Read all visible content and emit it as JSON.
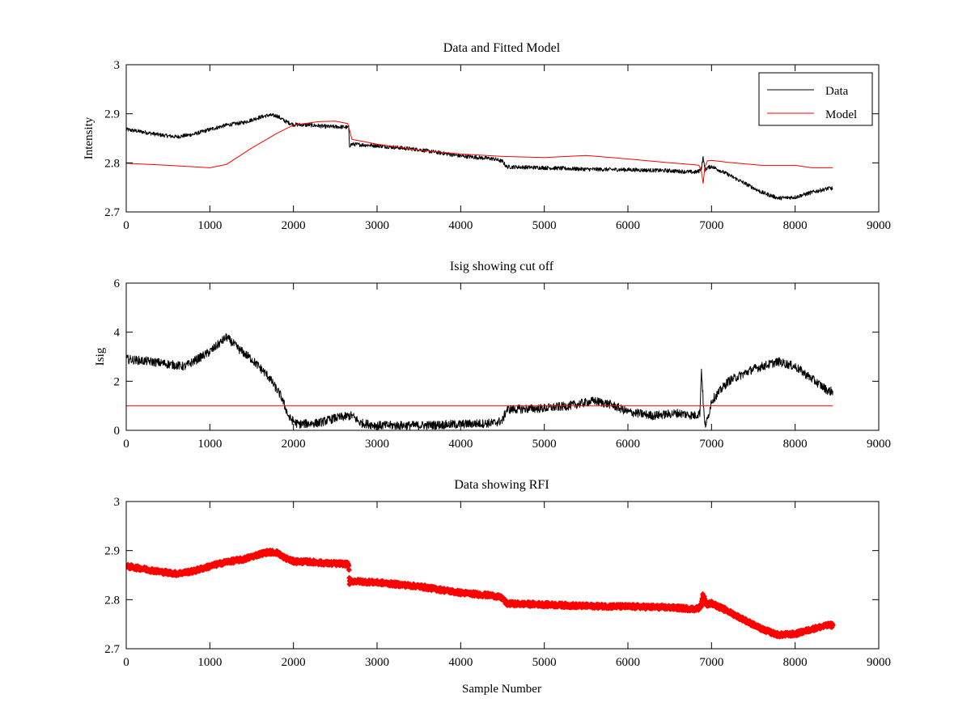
{
  "chart_data": [
    {
      "type": "line",
      "title": "Data and Fitted Model",
      "xlabel": "",
      "ylabel": "Intensity",
      "xlim": [
        0,
        9000
      ],
      "ylim": [
        2.7,
        3.0
      ],
      "xticks": [
        0,
        1000,
        2000,
        3000,
        4000,
        5000,
        6000,
        7000,
        8000,
        9000
      ],
      "yticks": [
        2.7,
        2.8,
        2.9,
        3.0
      ],
      "xtick_labels": [
        "0",
        "1000",
        "2000",
        "3000",
        "4000",
        "5000",
        "6000",
        "7000",
        "8000",
        "9000"
      ],
      "ytick_labels": [
        "2.7",
        "2.8",
        "2.9",
        "3"
      ],
      "legend": "top-right",
      "grid": false,
      "series": [
        {
          "name": "Data",
          "color": "#000000",
          "noise": 0.004,
          "x": [
            0,
            200,
            400,
            600,
            800,
            1000,
            1200,
            1400,
            1600,
            1700,
            1800,
            1900,
            2000,
            2200,
            2400,
            2600,
            2660,
            2670,
            2700,
            3000,
            3500,
            4000,
            4400,
            4500,
            4550,
            5000,
            5500,
            6000,
            6500,
            6800,
            6850,
            6880,
            6900,
            6920,
            6950,
            7000,
            7200,
            7400,
            7600,
            7800,
            8000,
            8200,
            8400,
            8450
          ],
          "y": [
            2.868,
            2.863,
            2.857,
            2.853,
            2.858,
            2.868,
            2.877,
            2.882,
            2.893,
            2.897,
            2.896,
            2.885,
            2.878,
            2.877,
            2.874,
            2.873,
            2.872,
            2.835,
            2.838,
            2.835,
            2.827,
            2.814,
            2.808,
            2.803,
            2.792,
            2.79,
            2.787,
            2.786,
            2.784,
            2.781,
            2.783,
            2.79,
            2.812,
            2.785,
            2.79,
            2.793,
            2.776,
            2.758,
            2.74,
            2.728,
            2.73,
            2.74,
            2.748,
            2.748
          ]
        },
        {
          "name": "Model",
          "color": "#ff0000",
          "noise": 0,
          "x": [
            0,
            500,
            1000,
            1200,
            1500,
            1800,
            2000,
            2300,
            2500,
            2650,
            2700,
            3000,
            3500,
            4000,
            4500,
            5000,
            5500,
            6000,
            6500,
            6800,
            6850,
            6880,
            6900,
            6920,
            6950,
            7000,
            7200,
            7600,
            8000,
            8200,
            8450
          ],
          "y": [
            2.799,
            2.795,
            2.79,
            2.797,
            2.83,
            2.86,
            2.877,
            2.884,
            2.885,
            2.88,
            2.848,
            2.838,
            2.826,
            2.818,
            2.813,
            2.811,
            2.815,
            2.808,
            2.8,
            2.796,
            2.795,
            2.782,
            2.758,
            2.792,
            2.804,
            2.805,
            2.801,
            2.795,
            2.795,
            2.79,
            2.79
          ]
        }
      ]
    },
    {
      "type": "line",
      "title": "Isig showing cut off",
      "xlabel": "",
      "ylabel": "Isig",
      "xlim": [
        0,
        9000
      ],
      "ylim": [
        0,
        6
      ],
      "xticks": [
        0,
        1000,
        2000,
        3000,
        4000,
        5000,
        6000,
        7000,
        8000,
        9000
      ],
      "yticks": [
        0,
        2,
        4,
        6
      ],
      "xtick_labels": [
        "0",
        "1000",
        "2000",
        "3000",
        "4000",
        "5000",
        "6000",
        "7000",
        "8000",
        "9000"
      ],
      "ytick_labels": [
        "0",
        "2",
        "4",
        "6"
      ],
      "grid": false,
      "series": [
        {
          "color": "#000000",
          "noise": 0.18,
          "x": [
            0,
            300,
            700,
            1000,
            1200,
            1350,
            1500,
            1700,
            1850,
            1950,
            2050,
            2300,
            2500,
            2700,
            2800,
            3000,
            3500,
            4000,
            4400,
            4500,
            4550,
            5000,
            5300,
            5600,
            5800,
            6000,
            6300,
            6600,
            6800,
            6860,
            6880,
            6900,
            6920,
            6950,
            7000,
            7200,
            7500,
            7800,
            8000,
            8200,
            8400,
            8450
          ],
          "y": [
            2.9,
            2.8,
            2.6,
            3.2,
            3.8,
            3.3,
            2.9,
            2.2,
            1.4,
            0.5,
            0.25,
            0.3,
            0.5,
            0.6,
            0.3,
            0.2,
            0.2,
            0.25,
            0.3,
            0.4,
            0.85,
            0.9,
            1.0,
            1.2,
            1.05,
            0.75,
            0.6,
            0.7,
            0.6,
            0.7,
            2.5,
            1.2,
            0.2,
            0.4,
            1.2,
            2.0,
            2.5,
            2.8,
            2.6,
            2.1,
            1.6,
            1.6
          ]
        },
        {
          "color": "#ff0000",
          "noise": 0,
          "x": [
            0,
            8450
          ],
          "y": [
            1,
            1
          ]
        }
      ]
    },
    {
      "type": "scatter",
      "title": "Data showing RFI",
      "xlabel": "Sample Number",
      "ylabel": "",
      "xlim": [
        0,
        9000
      ],
      "ylim": [
        2.7,
        3.0
      ],
      "xticks": [
        0,
        1000,
        2000,
        3000,
        4000,
        5000,
        6000,
        7000,
        8000,
        9000
      ],
      "yticks": [
        2.7,
        2.8,
        2.9,
        3.0
      ],
      "xtick_labels": [
        "0",
        "1000",
        "2000",
        "3000",
        "4000",
        "5000",
        "6000",
        "7000",
        "8000",
        "9000"
      ],
      "ytick_labels": [
        "2.7",
        "2.8",
        "2.9",
        "3"
      ],
      "grid": false,
      "series": [
        {
          "color": "#ff0000",
          "noise": 0.004,
          "x": [
            0,
            200,
            400,
            600,
            800,
            1000,
            1200,
            1400,
            1600,
            1700,
            1800,
            1900,
            2000,
            2200,
            2400,
            2600,
            2660,
            2670,
            2700,
            3000,
            3500,
            4000,
            4400,
            4500,
            4550,
            5000,
            5500,
            6000,
            6500,
            6800,
            6850,
            6880,
            6900,
            6920,
            6950,
            7000,
            7200,
            7400,
            7600,
            7800,
            8000,
            8200,
            8400,
            8450
          ],
          "y": [
            2.868,
            2.863,
            2.857,
            2.853,
            2.858,
            2.868,
            2.877,
            2.882,
            2.893,
            2.897,
            2.896,
            2.885,
            2.878,
            2.877,
            2.874,
            2.873,
            2.872,
            2.835,
            2.838,
            2.835,
            2.827,
            2.814,
            2.808,
            2.803,
            2.792,
            2.79,
            2.787,
            2.786,
            2.784,
            2.781,
            2.783,
            2.79,
            2.812,
            2.797,
            2.79,
            2.793,
            2.776,
            2.758,
            2.74,
            2.728,
            2.73,
            2.74,
            2.748,
            2.748
          ]
        }
      ]
    }
  ]
}
